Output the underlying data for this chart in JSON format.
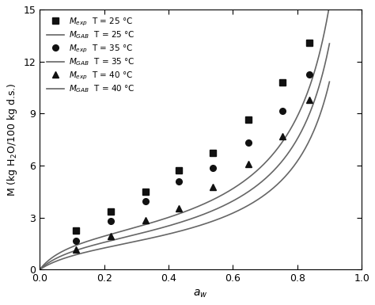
{
  "title": "",
  "xlabel": "a_w",
  "ylabel": "M (kg H$_2$O/100 kg d.s.)",
  "xlim": [
    0.0,
    1.0
  ],
  "ylim": [
    0,
    15
  ],
  "xticks": [
    0.0,
    0.2,
    0.4,
    0.6,
    0.8,
    1.0
  ],
  "yticks": [
    0,
    3,
    6,
    9,
    12,
    15
  ],
  "exp_25": {
    "x": [
      0.113,
      0.22,
      0.328,
      0.432,
      0.538,
      0.648,
      0.755,
      0.838
    ],
    "y": [
      2.25,
      3.35,
      4.5,
      5.7,
      6.75,
      8.65,
      10.8,
      13.1
    ]
  },
  "exp_35": {
    "x": [
      0.113,
      0.22,
      0.328,
      0.432,
      0.538,
      0.648,
      0.755,
      0.838
    ],
    "y": [
      1.65,
      2.8,
      3.95,
      5.1,
      5.85,
      7.3,
      9.15,
      11.25
    ]
  },
  "exp_40": {
    "x": [
      0.113,
      0.22,
      0.328,
      0.432,
      0.538,
      0.648,
      0.755,
      0.838
    ],
    "y": [
      1.15,
      1.95,
      2.85,
      3.55,
      4.75,
      6.1,
      7.7,
      9.8
    ]
  },
  "gab_25": {
    "M0": 2.1,
    "C": 12.0,
    "K": 0.96
  },
  "gab_35": {
    "M0": 1.8,
    "C": 10.0,
    "K": 0.96
  },
  "gab_40": {
    "M0": 1.5,
    "C": 8.5,
    "K": 0.96
  },
  "color_line": "#666666",
  "color_marker": "#111111",
  "marker_size": 5.5,
  "line_width": 1.2
}
